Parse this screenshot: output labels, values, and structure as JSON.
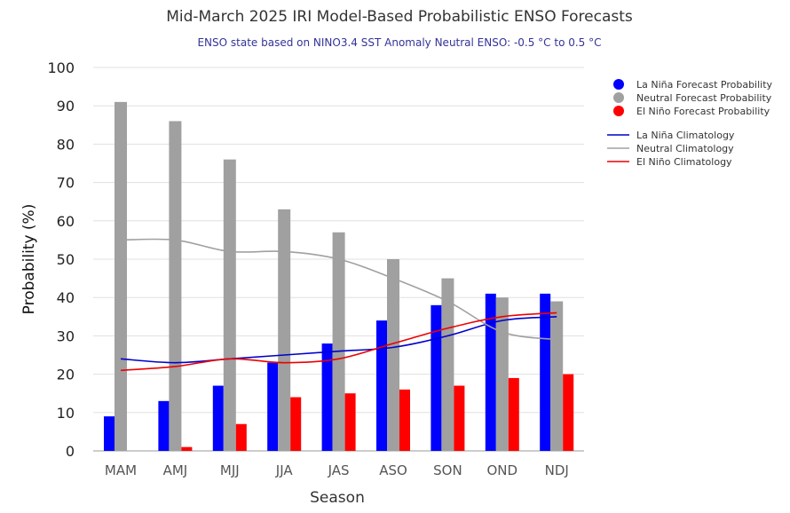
{
  "chart_data": {
    "type": "bar",
    "title": "Mid-March 2025 IRI Model-Based Probabilistic ENSO Forecasts",
    "subtitle": "ENSO state based on NINO3.4 SST Anomaly Neutral ENSO: -0.5 °C to 0.5 °C",
    "xlabel": "Season",
    "ylabel": "Probability (%)",
    "ylim": [
      0,
      100
    ],
    "yticks": [
      0,
      10,
      20,
      30,
      40,
      50,
      60,
      70,
      80,
      90,
      100
    ],
    "grid": true,
    "legend_position": "right",
    "categories": [
      "MAM",
      "AMJ",
      "MJJ",
      "JJA",
      "JAS",
      "ASO",
      "SON",
      "OND",
      "NDJ"
    ],
    "series": [
      {
        "name": "La Niña Forecast Probability",
        "kind": "bar",
        "color": "#0000ff",
        "values": [
          9,
          13,
          17,
          23,
          28,
          34,
          38,
          41,
          41
        ]
      },
      {
        "name": "Neutral Forecast Probability",
        "kind": "bar",
        "color": "#a0a0a0",
        "values": [
          91,
          86,
          76,
          63,
          57,
          50,
          45,
          40,
          39
        ]
      },
      {
        "name": "El Niño Forecast Probability",
        "kind": "bar",
        "color": "#ff0000",
        "values": [
          0,
          1,
          7,
          14,
          15,
          16,
          17,
          19,
          20
        ]
      },
      {
        "name": "La Niña Climatology",
        "kind": "line",
        "color": "#0000cc",
        "values": [
          24,
          23,
          24,
          25,
          26,
          27,
          30,
          34,
          35
        ]
      },
      {
        "name": "Neutral Climatology",
        "kind": "line",
        "color": "#a0a0a0",
        "values": [
          55,
          55,
          52,
          52,
          50,
          45,
          39,
          31,
          29
        ]
      },
      {
        "name": "El Niño Climatology",
        "kind": "line",
        "color": "#ee0000",
        "values": [
          21,
          22,
          24,
          23,
          24,
          28,
          32,
          35,
          36
        ]
      }
    ]
  }
}
